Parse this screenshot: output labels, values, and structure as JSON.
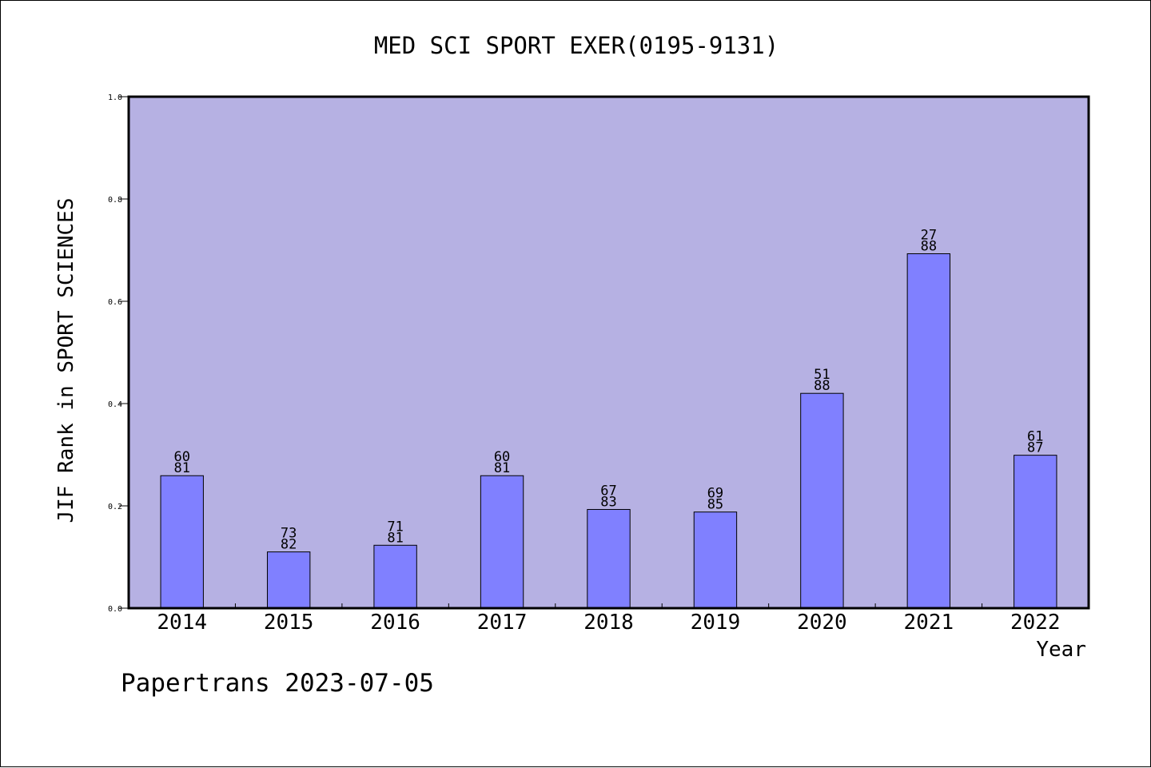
{
  "chart_data": {
    "type": "bar",
    "title": "MED SCI SPORT EXER(0195-9131)",
    "xlabel": "Year",
    "ylabel": "JIF Rank in SPORT SCIENCES",
    "ylim": [
      0,
      1.0
    ],
    "yticks": [
      "0.0",
      "0.2",
      "0.4",
      "0.6",
      "0.8",
      "1.0"
    ],
    "categories": [
      "2014",
      "2015",
      "2016",
      "2017",
      "2018",
      "2019",
      "2020",
      "2021",
      "2022"
    ],
    "values": [
      0.259,
      0.11,
      0.123,
      0.259,
      0.193,
      0.188,
      0.42,
      0.693,
      0.299
    ],
    "labels": [
      {
        "rank": "60",
        "total": "81"
      },
      {
        "rank": "73",
        "total": "82"
      },
      {
        "rank": "71",
        "total": "81"
      },
      {
        "rank": "60",
        "total": "81"
      },
      {
        "rank": "67",
        "total": "83"
      },
      {
        "rank": "69",
        "total": "85"
      },
      {
        "rank": "51",
        "total": "88"
      },
      {
        "rank": "27",
        "total": "88"
      },
      {
        "rank": "61",
        "total": "87"
      }
    ],
    "grid": false,
    "colors": {
      "plot_background": "#b6b1e3",
      "bar_fill": "#8080ff",
      "bar_stroke": "#000000"
    }
  },
  "footer": {
    "watermark": "Papertrans 2023-07-05"
  }
}
